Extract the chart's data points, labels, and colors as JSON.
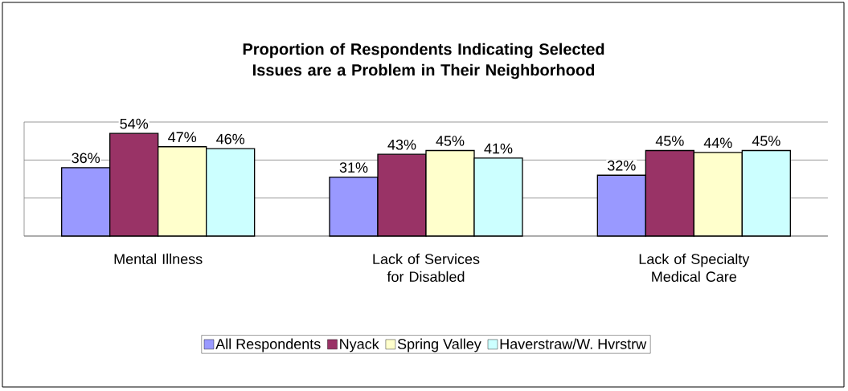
{
  "chart_data": {
    "type": "bar",
    "title": "Proportion of Respondents Indicating Selected Issues are a Problem in Their Neighborhood",
    "categories": [
      "Mental Illness",
      "Lack of Services for Disabled",
      "Lack of Specialty Medical Care"
    ],
    "series": [
      {
        "name": "All Respondents",
        "color": "#9999ff",
        "values": [
          36,
          31,
          32
        ],
        "value_labels": [
          "36%",
          "31%",
          "32%"
        ]
      },
      {
        "name": "Nyack",
        "color": "#993366",
        "values": [
          54,
          43,
          45
        ],
        "value_labels": [
          "54%",
          "43%",
          "45%"
        ]
      },
      {
        "name": "Spring Valley",
        "color": "#ffffcc",
        "values": [
          47,
          45,
          44
        ],
        "value_labels": [
          "47%",
          "45%",
          "44%"
        ]
      },
      {
        "name": "Haverstraw/W. Hvrstrw",
        "color": "#ccffff",
        "values": [
          46,
          41,
          45
        ],
        "value_labels": [
          "46%",
          "41%",
          "45%"
        ]
      }
    ],
    "ylim": [
      0,
      60
    ],
    "yticks": [
      {
        "value": 0,
        "label": null
      },
      {
        "value": 20,
        "label": null
      },
      {
        "value": 40,
        "label": null
      },
      {
        "value": 60,
        "label": null
      }
    ],
    "tick_labels": "x",
    "grid": "y",
    "legend": "bottom"
  }
}
